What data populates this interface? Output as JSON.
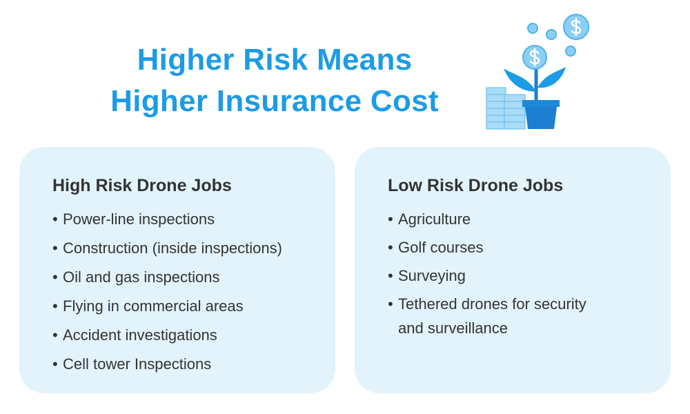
{
  "header": {
    "title_lines": [
      "Higher Risk Means",
      "Higher Insurance Cost"
    ]
  },
  "cards": [
    {
      "heading": "High Risk Drone Jobs",
      "items": [
        "Power-line inspections",
        "Construction (inside inspections)",
        "Oil and gas inspections",
        "Flying in commercial areas",
        "Accident investigations",
        "Cell tower Inspections"
      ]
    },
    {
      "heading": "Low Risk Drone Jobs",
      "items": [
        "Agriculture",
        "Golf courses",
        "Surveying",
        "Tethered drones for security and surveillance"
      ]
    }
  ]
}
